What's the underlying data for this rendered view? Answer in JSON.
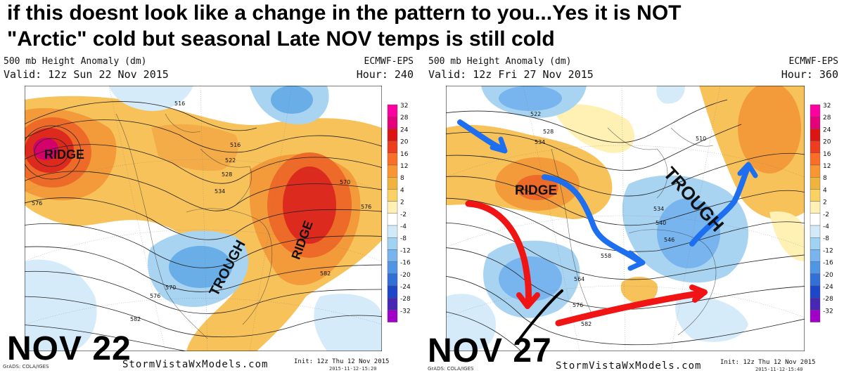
{
  "headline": {
    "line1": "if this  doesnt look like a change in the pattern to you...Yes it is NOT",
    "line2": "\"Arctic\" cold but  seasonal Late NOV temps is still cold"
  },
  "panels": [
    {
      "title": "500 mb Height Anomaly (dm)",
      "valid": "Valid: 12z Sun 22 Nov 2015",
      "model": "ECMWF-EPS",
      "hour": "Hour: 240",
      "big_label": "NOV 22",
      "map_labels": [
        "RIDGE",
        "TROUGH",
        "RIDGE"
      ],
      "contours": [
        "516",
        "522",
        "528",
        "534",
        "546",
        "570",
        "576",
        "582",
        "582",
        "570",
        "576",
        "582"
      ],
      "grads": "GrADS: COLA/IGES",
      "watermark": "StormVistaWxModels.com",
      "init": "Init: 12z Thu 12 Nov 2015",
      "stamp": "2015-11-12-15:20"
    },
    {
      "title": "500 mb Height Anomaly (dm)",
      "valid": "Valid: 12z Fri 27 Nov 2015",
      "model": "ECMWF-EPS",
      "hour": "Hour: 360",
      "big_label": "NOV 27",
      "map_labels": [
        "RIDGE",
        "TROUGH"
      ],
      "contours": [
        "510",
        "516",
        "522",
        "528",
        "534",
        "534",
        "540",
        "546",
        "552",
        "558",
        "564",
        "576",
        "582"
      ],
      "grads": "GrADS: COLA/IGES",
      "watermark": "StormVistaWxModels.com",
      "init": "Init: 12z Thu 12 Nov 2015",
      "stamp": "2015-11-12-15:40"
    }
  ],
  "colorbar": {
    "labels": [
      "32",
      "28",
      "24",
      "20",
      "16",
      "12",
      "8",
      "4",
      "2",
      "-2",
      "-4",
      "-8",
      "-12",
      "-16",
      "-20",
      "-24",
      "-28",
      "-32"
    ],
    "colors": [
      "#ff00a0",
      "#e6007a",
      "#dc1414",
      "#f03c1e",
      "#fa6e28",
      "#fa9632",
      "#f0b43c",
      "#fad264",
      "#fff0b4",
      "#ffffff",
      "#d2eaf8",
      "#a0d2f2",
      "#78b4ee",
      "#5096e6",
      "#3270d8",
      "#1e46c8",
      "#4628b4",
      "#a000c8"
    ]
  }
}
